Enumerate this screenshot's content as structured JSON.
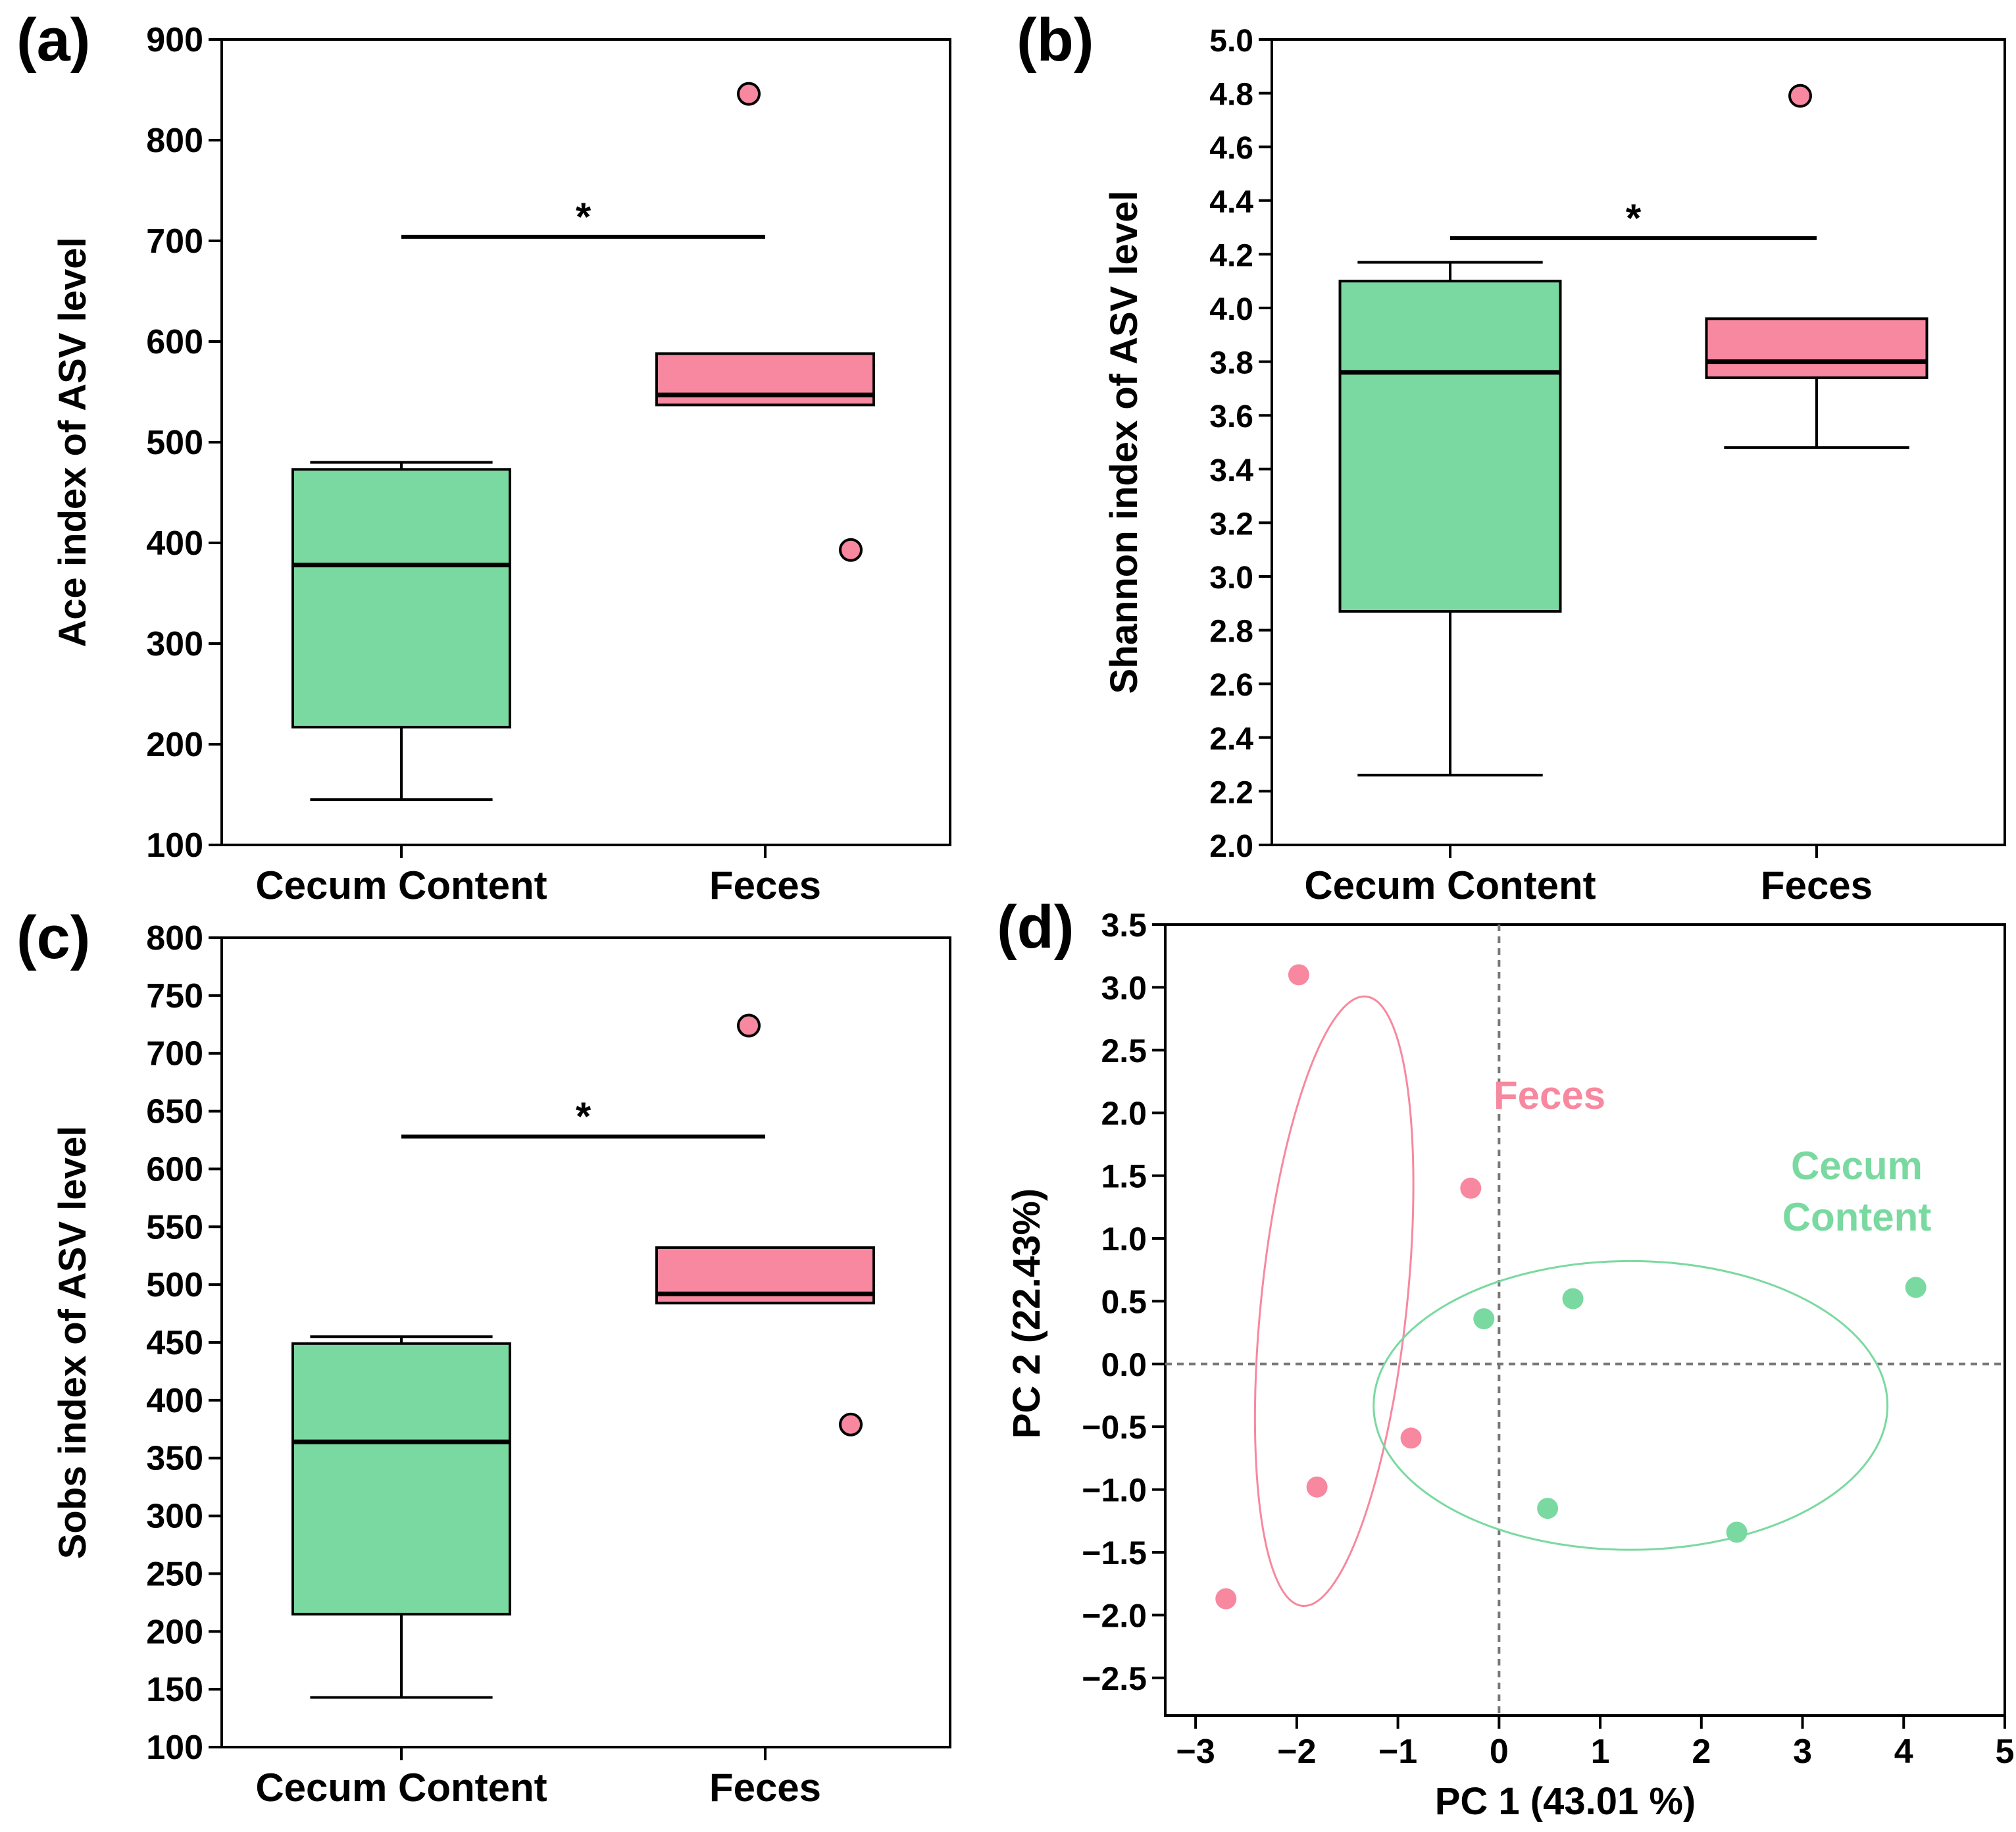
{
  "figure": {
    "colors": {
      "cecum": "#7ad9a0",
      "feces": "#f7889f",
      "cecum_text": "#7ad9a0",
      "feces_text": "#f7889f",
      "axis": "#000000",
      "refline": "#777777"
    }
  },
  "chart_data": [
    {
      "type": "box",
      "panel_label": "(a)",
      "ylabel": "Ace index of ASV level",
      "ylim": [
        100,
        900
      ],
      "yticks": [
        100,
        200,
        300,
        400,
        500,
        600,
        700,
        800,
        900
      ],
      "categories": [
        "Cecum Content",
        "Feces"
      ],
      "boxes": [
        {
          "name": "Cecum Content",
          "whisker_low": 145,
          "q1": 217,
          "median": 378,
          "q3": 473,
          "whisker_high": 480,
          "outliers": []
        },
        {
          "name": "Feces",
          "whisker_low": 537,
          "q1": 537,
          "median": 547,
          "q3": 588,
          "whisker_high": 588,
          "outliers": [
            846,
            393
          ]
        }
      ],
      "significance": {
        "label": "*",
        "y": 704
      }
    },
    {
      "type": "box",
      "panel_label": "(b)",
      "ylabel": "Shannon index of ASV level",
      "ylim": [
        2.0,
        5.0
      ],
      "yticks": [
        "2.0",
        "2.2",
        "2.4",
        "2.6",
        "2.8",
        "3.0",
        "3.2",
        "3.4",
        "3.6",
        "3.8",
        "4.0",
        "4.2",
        "4.4",
        "4.6",
        "4.8",
        "5.0"
      ],
      "categories": [
        "Cecum Content",
        "Feces"
      ],
      "boxes": [
        {
          "name": "Cecum Content",
          "whisker_low": 2.26,
          "q1": 2.87,
          "median": 3.76,
          "q3": 4.1,
          "whisker_high": 4.17,
          "outliers": []
        },
        {
          "name": "Feces",
          "whisker_low": 3.48,
          "q1": 3.74,
          "median": 3.8,
          "q3": 3.96,
          "whisker_high": 3.96,
          "outliers": [
            4.79
          ]
        }
      ],
      "significance": {
        "label": "*",
        "y": 4.26
      }
    },
    {
      "type": "box",
      "panel_label": "(c)",
      "ylabel": "Sobs index of ASV level",
      "ylim": [
        100,
        800
      ],
      "yticks": [
        100,
        150,
        200,
        250,
        300,
        350,
        400,
        450,
        500,
        550,
        600,
        650,
        700,
        750,
        800
      ],
      "categories": [
        "Cecum Content",
        "Feces"
      ],
      "boxes": [
        {
          "name": "Cecum Content",
          "whisker_low": 143,
          "q1": 215,
          "median": 364,
          "q3": 449,
          "whisker_high": 455,
          "outliers": []
        },
        {
          "name": "Feces",
          "whisker_low": 484,
          "q1": 484,
          "median": 492,
          "q3": 532,
          "whisker_high": 532,
          "outliers": [
            724,
            379
          ]
        }
      ],
      "significance": {
        "label": "*",
        "y": 628
      }
    },
    {
      "type": "scatter",
      "panel_label": "(d)",
      "xlabel": "PC 1 (43.01 %)",
      "ylabel": "PC 2 (22.43%)",
      "xlim": [
        -3.3,
        5.0
      ],
      "ylim": [
        -2.8,
        3.5
      ],
      "xticks": [
        "−3",
        "−2",
        "−1",
        "0",
        "1",
        "2",
        "3",
        "4",
        "5"
      ],
      "xtick_values": [
        -3,
        -2,
        -1,
        0,
        1,
        2,
        3,
        4,
        5
      ],
      "yticks": [
        "−2.5",
        "−2.0",
        "−1.5",
        "−1.0",
        "−0.5",
        "0.0",
        "0.5",
        "1.0",
        "1.5",
        "2.0",
        "2.5",
        "3.0",
        "3.5"
      ],
      "ytick_values": [
        -2.5,
        -2.0,
        -1.5,
        -1.0,
        -0.5,
        0.0,
        0.5,
        1.0,
        1.5,
        2.0,
        2.5,
        3.0,
        3.5
      ],
      "series": [
        {
          "name": "Feces",
          "label_lines": [
            "Feces"
          ],
          "points": [
            [
              -1.98,
              3.1
            ],
            [
              -0.28,
              1.4
            ],
            [
              -0.87,
              -0.59
            ],
            [
              -1.8,
              -0.98
            ],
            [
              -2.7,
              -1.87
            ]
          ],
          "ellipse": {
            "cx": -1.63,
            "cy": 0.5,
            "rx": 0.72,
            "ry": 2.44,
            "angle_deg": 6
          }
        },
        {
          "name": "Cecum Content",
          "label_lines": [
            "Cecum",
            "Content"
          ],
          "points": [
            [
              -0.15,
              0.36
            ],
            [
              0.73,
              0.52
            ],
            [
              4.12,
              0.61
            ],
            [
              0.48,
              -1.15
            ],
            [
              2.35,
              -1.34
            ]
          ],
          "ellipse": {
            "cx": 1.3,
            "cy": -0.33,
            "rx": 2.54,
            "ry": 1.15,
            "angle_deg": 0
          }
        }
      ]
    }
  ]
}
